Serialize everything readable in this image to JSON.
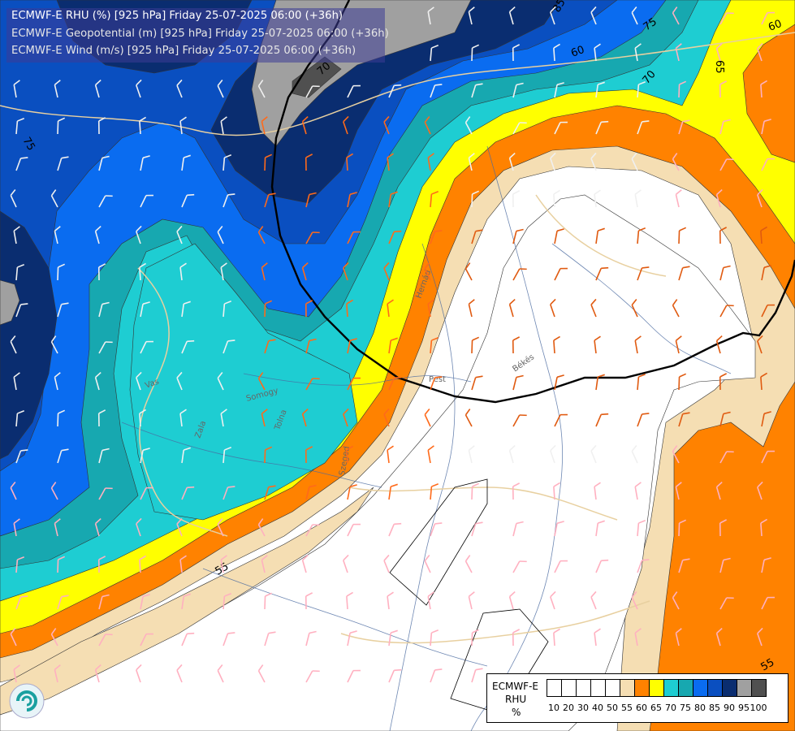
{
  "titles": [
    "ECMWF-E RHU (%) [925 hPa] Friday 25-07-2025 06:00 (+36h)",
    "ECMWF-E Geopotential (m) [925 hPa] Friday 25-07-2025 06:00 (+36h)",
    "ECMWF-E Wind (m/s) [925 hPa] Friday 25-07-2025 06:00 (+36h)"
  ],
  "legend": {
    "label_line1": "ECMWF-E",
    "label_line2": "RHU",
    "label_line3": "%",
    "colors": [
      "#ffffff",
      "#ffffff",
      "#ffffff",
      "#ffffff",
      "#ffffff",
      "#f5deb3",
      "#ff8200",
      "#ffff00",
      "#1ecdd2",
      "#17a8b0",
      "#0a6cf0",
      "#0a4fc0",
      "#0a2d70",
      "#a0a0a0",
      "#505050"
    ],
    "ticks": [
      "10",
      "20",
      "30",
      "40",
      "50",
      "55",
      "60",
      "65",
      "70",
      "75",
      "80",
      "85",
      "90",
      "95",
      "100"
    ]
  },
  "contour_labels": [
    "85",
    "75",
    "70",
    "60",
    "65",
    "60",
    "75",
    "55",
    "55",
    "70"
  ],
  "place_labels": [
    "Hernád",
    "Békés",
    "Pest",
    "Vas",
    "Zala",
    "Somogy",
    "Tolna",
    "Szeged"
  ],
  "colors": {
    "white": "#ffffff",
    "wheat": "#f5deb3",
    "orange": "#ff8200",
    "yellow": "#ffff00",
    "cyan": "#1ecdd2",
    "teal": "#17a8b0",
    "blue": "#0a6cf0",
    "mid_blue": "#0a4fc0",
    "navy": "#0a2d70",
    "gray": "#a0a0a0",
    "dark_gray": "#505050"
  }
}
